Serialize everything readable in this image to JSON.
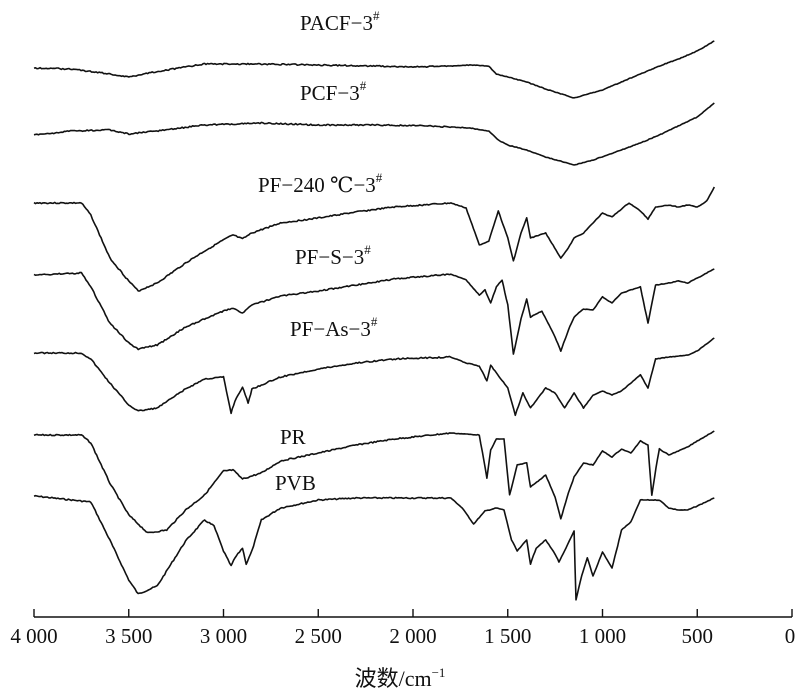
{
  "chart_data": {
    "type": "line",
    "xlabel": "波数/cm",
    "xlabel_sup": "−1",
    "xlim": [
      4000,
      0
    ],
    "x_ticks": [
      {
        "value": 4000,
        "label": "4 000"
      },
      {
        "value": 3500,
        "label": "3 500"
      },
      {
        "value": 3000,
        "label": "3 000"
      },
      {
        "value": 2500,
        "label": "2 500"
      },
      {
        "value": 2000,
        "label": "2 000"
      },
      {
        "value": 1500,
        "label": "1 500"
      },
      {
        "value": 1000,
        "label": "1 000"
      },
      {
        "value": 500,
        "label": "500"
      },
      {
        "value": 0,
        "label": "0"
      }
    ],
    "y_axis_shown": false,
    "grid": false,
    "legend": "inline labels above each curve",
    "series_color": "#111111",
    "series": [
      {
        "name": "PACF−3",
        "sup": "#",
        "points": [
          [
            4000,
            0
          ],
          [
            3800,
            -1
          ],
          [
            3600,
            -6
          ],
          [
            3500,
            -9
          ],
          [
            3400,
            -5
          ],
          [
            3100,
            4
          ],
          [
            2800,
            4
          ],
          [
            2500,
            3
          ],
          [
            2200,
            2
          ],
          [
            2000,
            1
          ],
          [
            1800,
            2
          ],
          [
            1700,
            3
          ],
          [
            1600,
            2
          ],
          [
            1560,
            -6
          ],
          [
            1500,
            -9
          ],
          [
            1400,
            -14
          ],
          [
            1300,
            -21
          ],
          [
            1150,
            -30
          ],
          [
            1000,
            -22
          ],
          [
            900,
            -14
          ],
          [
            800,
            -6
          ],
          [
            700,
            2
          ],
          [
            600,
            9
          ],
          [
            500,
            17
          ],
          [
            410,
            27
          ]
        ]
      },
      {
        "name": "PCF−3",
        "sup": "#",
        "points": [
          [
            4000,
            0
          ],
          [
            3800,
            4
          ],
          [
            3600,
            5
          ],
          [
            3500,
            1
          ],
          [
            3400,
            3
          ],
          [
            3100,
            10
          ],
          [
            2800,
            12
          ],
          [
            2500,
            10
          ],
          [
            2200,
            10
          ],
          [
            1900,
            9
          ],
          [
            1700,
            7
          ],
          [
            1600,
            4
          ],
          [
            1550,
            -5
          ],
          [
            1500,
            -10
          ],
          [
            1400,
            -15
          ],
          [
            1300,
            -22
          ],
          [
            1150,
            -30
          ],
          [
            1050,
            -25
          ],
          [
            900,
            -15
          ],
          [
            800,
            -8
          ],
          [
            700,
            0
          ],
          [
            600,
            9
          ],
          [
            500,
            18
          ],
          [
            410,
            32
          ]
        ]
      },
      {
        "name": "PF−240 ℃−3",
        "sup": "#",
        "points": [
          [
            4000,
            0
          ],
          [
            3750,
            0
          ],
          [
            3700,
            -12
          ],
          [
            3600,
            -55
          ],
          [
            3500,
            -78
          ],
          [
            3450,
            -88
          ],
          [
            3350,
            -80
          ],
          [
            3200,
            -60
          ],
          [
            3100,
            -48
          ],
          [
            3000,
            -37
          ],
          [
            2950,
            -32
          ],
          [
            2900,
            -36
          ],
          [
            2850,
            -30
          ],
          [
            2700,
            -20
          ],
          [
            2500,
            -15
          ],
          [
            2300,
            -9
          ],
          [
            2100,
            -4
          ],
          [
            1800,
            0
          ],
          [
            1720,
            -5
          ],
          [
            1650,
            -42
          ],
          [
            1600,
            -38
          ],
          [
            1550,
            -8
          ],
          [
            1500,
            -35
          ],
          [
            1470,
            -58
          ],
          [
            1430,
            -30
          ],
          [
            1400,
            -15
          ],
          [
            1380,
            -35
          ],
          [
            1300,
            -30
          ],
          [
            1220,
            -55
          ],
          [
            1180,
            -45
          ],
          [
            1150,
            -35
          ],
          [
            1100,
            -30
          ],
          [
            1050,
            -20
          ],
          [
            1000,
            -10
          ],
          [
            950,
            -14
          ],
          [
            900,
            -6
          ],
          [
            860,
            0
          ],
          [
            800,
            -8
          ],
          [
            760,
            -16
          ],
          [
            720,
            -4
          ],
          [
            650,
            -2
          ],
          [
            600,
            -4
          ],
          [
            550,
            -2
          ],
          [
            500,
            -4
          ],
          [
            450,
            2
          ],
          [
            410,
            16
          ]
        ]
      },
      {
        "name": "PF−S−3",
        "sup": "#",
        "points": [
          [
            4000,
            0
          ],
          [
            3750,
            2
          ],
          [
            3700,
            -12
          ],
          [
            3600,
            -48
          ],
          [
            3500,
            -68
          ],
          [
            3450,
            -74
          ],
          [
            3350,
            -70
          ],
          [
            3200,
            -52
          ],
          [
            3100,
            -44
          ],
          [
            3000,
            -36
          ],
          [
            2950,
            -33
          ],
          [
            2900,
            -38
          ],
          [
            2850,
            -30
          ],
          [
            2700,
            -21
          ],
          [
            2500,
            -16
          ],
          [
            2300,
            -10
          ],
          [
            2100,
            -4
          ],
          [
            1800,
            1
          ],
          [
            1720,
            -5
          ],
          [
            1650,
            -20
          ],
          [
            1620,
            -15
          ],
          [
            1590,
            -28
          ],
          [
            1560,
            -12
          ],
          [
            1530,
            -5
          ],
          [
            1500,
            -30
          ],
          [
            1470,
            -79
          ],
          [
            1430,
            -44
          ],
          [
            1400,
            -24
          ],
          [
            1380,
            -42
          ],
          [
            1320,
            -36
          ],
          [
            1250,
            -62
          ],
          [
            1220,
            -76
          ],
          [
            1180,
            -55
          ],
          [
            1150,
            -42
          ],
          [
            1100,
            -34
          ],
          [
            1050,
            -35
          ],
          [
            1000,
            -22
          ],
          [
            950,
            -28
          ],
          [
            900,
            -18
          ],
          [
            850,
            -15
          ],
          [
            800,
            -12
          ],
          [
            760,
            -48
          ],
          [
            720,
            -10
          ],
          [
            650,
            -8
          ],
          [
            600,
            -6
          ],
          [
            550,
            -8
          ],
          [
            500,
            -3
          ],
          [
            410,
            6
          ]
        ]
      },
      {
        "name": "PF−As−3",
        "sup": "#",
        "points": [
          [
            4000,
            0
          ],
          [
            3750,
            0
          ],
          [
            3700,
            -6
          ],
          [
            3600,
            -30
          ],
          [
            3500,
            -52
          ],
          [
            3450,
            -58
          ],
          [
            3350,
            -55
          ],
          [
            3200,
            -36
          ],
          [
            3100,
            -26
          ],
          [
            3000,
            -24
          ],
          [
            2960,
            -60
          ],
          [
            2940,
            -48
          ],
          [
            2900,
            -34
          ],
          [
            2870,
            -50
          ],
          [
            2850,
            -36
          ],
          [
            2800,
            -32
          ],
          [
            2700,
            -24
          ],
          [
            2500,
            -16
          ],
          [
            2300,
            -10
          ],
          [
            2100,
            -6
          ],
          [
            1800,
            -4
          ],
          [
            1720,
            -10
          ],
          [
            1650,
            -13
          ],
          [
            1610,
            -28
          ],
          [
            1590,
            -12
          ],
          [
            1560,
            -20
          ],
          [
            1500,
            -35
          ],
          [
            1460,
            -62
          ],
          [
            1420,
            -40
          ],
          [
            1380,
            -55
          ],
          [
            1300,
            -35
          ],
          [
            1250,
            -40
          ],
          [
            1200,
            -55
          ],
          [
            1150,
            -40
          ],
          [
            1100,
            -55
          ],
          [
            1050,
            -42
          ],
          [
            1000,
            -38
          ],
          [
            950,
            -42
          ],
          [
            900,
            -38
          ],
          [
            800,
            -22
          ],
          [
            760,
            -35
          ],
          [
            720,
            -6
          ],
          [
            650,
            -4
          ],
          [
            550,
            -2
          ],
          [
            500,
            2
          ],
          [
            410,
            15
          ]
        ]
      },
      {
        "name": "PR",
        "sup": "",
        "points": [
          [
            4000,
            0
          ],
          [
            3750,
            0
          ],
          [
            3700,
            -8
          ],
          [
            3600,
            -48
          ],
          [
            3500,
            -80
          ],
          [
            3400,
            -98
          ],
          [
            3300,
            -95
          ],
          [
            3200,
            -75
          ],
          [
            3100,
            -60
          ],
          [
            3000,
            -36
          ],
          [
            2950,
            -35
          ],
          [
            2900,
            -44
          ],
          [
            2800,
            -38
          ],
          [
            2700,
            -26
          ],
          [
            2500,
            -18
          ],
          [
            2300,
            -10
          ],
          [
            2100,
            -4
          ],
          [
            1800,
            2
          ],
          [
            1650,
            0
          ],
          [
            1610,
            -43
          ],
          [
            1590,
            -15
          ],
          [
            1560,
            -4
          ],
          [
            1520,
            -4
          ],
          [
            1490,
            -60
          ],
          [
            1450,
            -30
          ],
          [
            1400,
            -28
          ],
          [
            1380,
            -52
          ],
          [
            1300,
            -40
          ],
          [
            1250,
            -62
          ],
          [
            1220,
            -84
          ],
          [
            1180,
            -58
          ],
          [
            1150,
            -42
          ],
          [
            1100,
            -28
          ],
          [
            1050,
            -30
          ],
          [
            1000,
            -16
          ],
          [
            950,
            -22
          ],
          [
            900,
            -14
          ],
          [
            850,
            -18
          ],
          [
            800,
            -6
          ],
          [
            760,
            -10
          ],
          [
            740,
            -60
          ],
          [
            710,
            -24
          ],
          [
            700,
            -14
          ],
          [
            650,
            -20
          ],
          [
            600,
            -16
          ],
          [
            550,
            -12
          ],
          [
            500,
            -6
          ],
          [
            410,
            4
          ]
        ]
      },
      {
        "name": "PVB",
        "sup": "",
        "points": [
          [
            4000,
            0
          ],
          [
            3700,
            -6
          ],
          [
            3600,
            -44
          ],
          [
            3500,
            -84
          ],
          [
            3450,
            -98
          ],
          [
            3350,
            -90
          ],
          [
            3200,
            -45
          ],
          [
            3100,
            -24
          ],
          [
            3050,
            -30
          ],
          [
            3000,
            -55
          ],
          [
            2960,
            -70
          ],
          [
            2940,
            -62
          ],
          [
            2900,
            -52
          ],
          [
            2880,
            -68
          ],
          [
            2850,
            -55
          ],
          [
            2800,
            -24
          ],
          [
            2700,
            -12
          ],
          [
            2500,
            -4
          ],
          [
            2300,
            -2
          ],
          [
            2100,
            -2
          ],
          [
            1900,
            -2
          ],
          [
            1800,
            -2
          ],
          [
            1740,
            -12
          ],
          [
            1680,
            -28
          ],
          [
            1620,
            -15
          ],
          [
            1560,
            -12
          ],
          [
            1520,
            -14
          ],
          [
            1480,
            -44
          ],
          [
            1450,
            -55
          ],
          [
            1400,
            -44
          ],
          [
            1380,
            -68
          ],
          [
            1350,
            -52
          ],
          [
            1300,
            -44
          ],
          [
            1250,
            -58
          ],
          [
            1230,
            -66
          ],
          [
            1200,
            -55
          ],
          [
            1150,
            -35
          ],
          [
            1140,
            -104
          ],
          [
            1110,
            -80
          ],
          [
            1080,
            -62
          ],
          [
            1050,
            -80
          ],
          [
            1000,
            -56
          ],
          [
            950,
            -72
          ],
          [
            920,
            -50
          ],
          [
            900,
            -34
          ],
          [
            850,
            -26
          ],
          [
            800,
            -4
          ],
          [
            760,
            -4
          ],
          [
            700,
            -4
          ],
          [
            650,
            -12
          ],
          [
            600,
            -14
          ],
          [
            550,
            -14
          ],
          [
            500,
            -10
          ],
          [
            410,
            -2
          ]
        ]
      }
    ]
  }
}
